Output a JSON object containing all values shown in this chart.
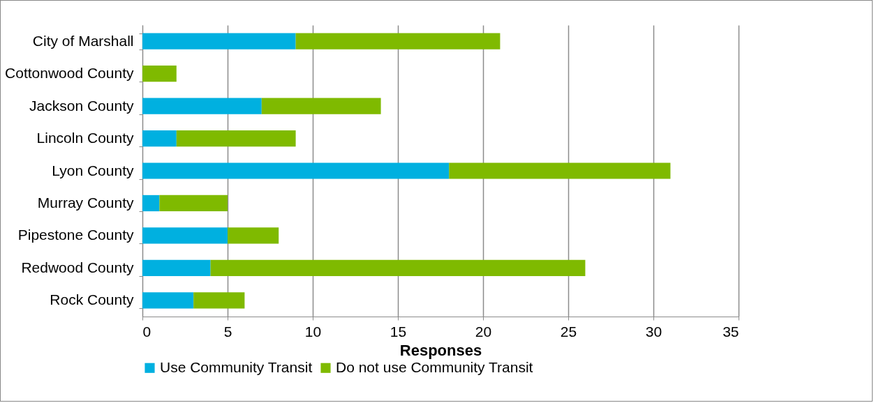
{
  "chart_data": {
    "type": "bar",
    "orientation": "horizontal",
    "stacked": true,
    "categories": [
      "City of Marshall",
      "Cottonwood County",
      "Jackson County",
      "Lincoln County",
      "Lyon County",
      "Murray County",
      "Pipestone County",
      "Redwood County",
      "Rock County"
    ],
    "series": [
      {
        "name": "Use Community Transit",
        "color": "#00b0e0",
        "values": [
          9,
          0,
          7,
          2,
          18,
          1,
          5,
          4,
          3
        ]
      },
      {
        "name": "Do not use Community Transit",
        "color": "#7fba00",
        "values": [
          12,
          2,
          7,
          7,
          13,
          4,
          3,
          22,
          3
        ]
      }
    ],
    "xlabel": "Responses",
    "xlim": [
      0,
      35
    ],
    "xticks": [
      0,
      5,
      10,
      15,
      20,
      25,
      30,
      35
    ],
    "grid": "x",
    "legend": "bottom"
  }
}
